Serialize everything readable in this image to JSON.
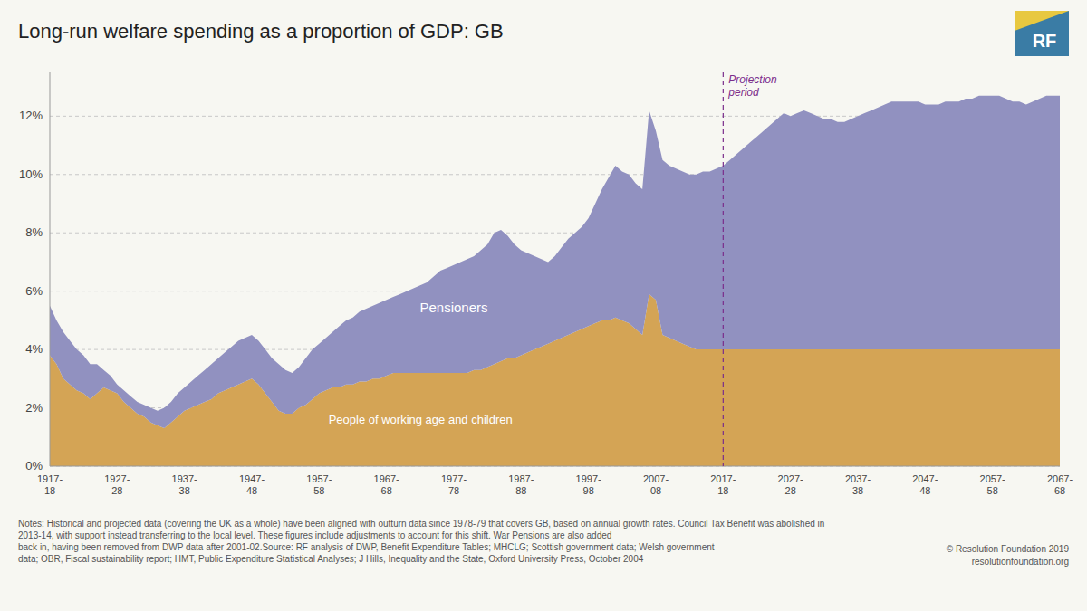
{
  "chart_data": {
    "type": "area",
    "stacked": true,
    "grid": true,
    "title": "Long-run welfare spending as a proportion of GDP: GB",
    "categories": [
      "1917-\n18",
      null,
      null,
      null,
      null,
      null,
      null,
      null,
      null,
      null,
      "1927-\n28",
      null,
      null,
      null,
      null,
      null,
      null,
      null,
      null,
      null,
      "1937-\n38",
      null,
      null,
      null,
      null,
      null,
      null,
      null,
      null,
      null,
      "1947-\n48",
      null,
      null,
      null,
      null,
      null,
      null,
      null,
      null,
      null,
      "1957-\n58",
      null,
      null,
      null,
      null,
      null,
      null,
      null,
      null,
      null,
      "1967-\n68",
      null,
      null,
      null,
      null,
      null,
      null,
      null,
      null,
      null,
      "1977-\n78",
      null,
      null,
      null,
      null,
      null,
      null,
      null,
      null,
      null,
      "1987-\n88",
      null,
      null,
      null,
      null,
      null,
      null,
      null,
      null,
      null,
      "1997-\n98",
      null,
      null,
      null,
      null,
      null,
      null,
      null,
      null,
      null,
      "2007-\n08",
      null,
      null,
      null,
      null,
      null,
      null,
      null,
      null,
      null,
      "2017-\n18",
      null,
      null,
      null,
      null,
      null,
      null,
      null,
      null,
      null,
      "2027-\n28",
      null,
      null,
      null,
      null,
      null,
      null,
      null,
      null,
      null,
      "2037-\n38",
      null,
      null,
      null,
      null,
      null,
      null,
      null,
      null,
      null,
      "2047-\n48",
      null,
      null,
      null,
      null,
      null,
      null,
      null,
      null,
      null,
      "2057-\n58",
      null,
      null,
      null,
      null,
      null,
      null,
      null,
      null,
      null,
      "2067-\n68"
    ],
    "series": [
      {
        "name": "People of working age and children",
        "color": "#d4a455",
        "values": [
          3.8,
          3.5,
          3.0,
          2.8,
          2.6,
          2.5,
          2.3,
          2.5,
          2.7,
          2.6,
          2.5,
          2.2,
          2.0,
          1.8,
          1.7,
          1.5,
          1.4,
          1.3,
          1.5,
          1.7,
          1.9,
          2.0,
          2.1,
          2.2,
          2.3,
          2.5,
          2.6,
          2.7,
          2.8,
          2.9,
          3.0,
          2.8,
          2.5,
          2.2,
          1.9,
          1.8,
          1.8,
          2.0,
          2.1,
          2.3,
          2.5,
          2.6,
          2.7,
          2.7,
          2.8,
          2.8,
          2.9,
          2.9,
          3.0,
          3.0,
          3.1,
          3.2,
          3.2,
          3.2,
          3.2,
          3.2,
          3.2,
          3.2,
          3.2,
          3.2,
          3.2,
          3.2,
          3.2,
          3.3,
          3.3,
          3.4,
          3.5,
          3.6,
          3.7,
          3.7,
          3.8,
          3.9,
          4.0,
          4.1,
          4.2,
          4.3,
          4.4,
          4.5,
          4.6,
          4.7,
          4.8,
          4.9,
          5.0,
          5.0,
          5.1,
          5.0,
          4.9,
          4.7,
          4.5,
          5.9,
          5.7,
          4.5,
          4.4,
          4.3,
          4.2,
          4.1,
          4.0,
          4.0,
          4.0,
          4.0,
          4.0,
          4.0,
          4.0,
          4.0,
          4.0,
          4.0,
          4.0,
          4.0,
          4.0,
          4.0,
          4.0,
          4.0,
          4.0,
          4.0,
          4.0,
          4.0,
          4.0,
          4.0,
          4.0,
          4.0,
          4.0,
          4.0,
          4.0,
          4.0,
          4.0,
          4.0,
          4.0,
          4.0,
          4.0,
          4.0,
          4.0,
          4.0,
          4.0,
          4.0,
          4.0,
          4.0,
          4.0,
          4.0,
          4.0,
          4.0,
          4.0,
          4.0,
          4.0,
          4.0,
          4.0,
          4.0,
          4.0,
          4.0,
          4.0,
          4.0,
          4.0
        ]
      },
      {
        "name": "Pensioners",
        "color": "#9191c0",
        "values": [
          1.7,
          1.5,
          1.6,
          1.5,
          1.4,
          1.3,
          1.2,
          1.0,
          0.6,
          0.5,
          0.3,
          0.4,
          0.4,
          0.4,
          0.4,
          0.5,
          0.5,
          0.7,
          0.7,
          0.8,
          0.8,
          0.9,
          1.0,
          1.1,
          1.2,
          1.2,
          1.3,
          1.4,
          1.5,
          1.5,
          1.5,
          1.5,
          1.5,
          1.5,
          1.6,
          1.5,
          1.4,
          1.4,
          1.6,
          1.7,
          1.7,
          1.8,
          1.9,
          2.1,
          2.2,
          2.3,
          2.4,
          2.5,
          2.5,
          2.6,
          2.6,
          2.6,
          2.7,
          2.8,
          2.9,
          3.0,
          3.1,
          3.3,
          3.5,
          3.6,
          3.7,
          3.8,
          3.9,
          3.9,
          4.1,
          4.2,
          4.5,
          4.5,
          4.2,
          3.9,
          3.6,
          3.4,
          3.2,
          3.0,
          2.8,
          2.9,
          3.1,
          3.3,
          3.4,
          3.5,
          3.7,
          4.1,
          4.5,
          4.9,
          5.2,
          5.1,
          5.1,
          5.0,
          5.0,
          6.3,
          5.8,
          6.0,
          5.9,
          5.9,
          5.9,
          5.9,
          6.0,
          6.1,
          6.1,
          6.2,
          6.3,
          6.5,
          6.7,
          6.9,
          7.1,
          7.3,
          7.5,
          7.7,
          7.9,
          8.1,
          8.0,
          8.1,
          8.2,
          8.1,
          8.0,
          7.9,
          7.9,
          7.8,
          7.8,
          7.9,
          8.0,
          8.1,
          8.2,
          8.3,
          8.4,
          8.5,
          8.5,
          8.5,
          8.5,
          8.5,
          8.4,
          8.4,
          8.4,
          8.5,
          8.5,
          8.5,
          8.6,
          8.6,
          8.7,
          8.7,
          8.7,
          8.7,
          8.6,
          8.5,
          8.5,
          8.4,
          8.5,
          8.6,
          8.7,
          8.7,
          8.7
        ]
      }
    ],
    "ylim": [
      0,
      13.5
    ],
    "yticks": [
      {
        "value": 0,
        "label": "0%"
      },
      {
        "value": 2,
        "label": "2%"
      },
      {
        "value": 4,
        "label": "4%"
      },
      {
        "value": 6,
        "label": "6%"
      },
      {
        "value": 8,
        "label": "8%"
      },
      {
        "value": 10,
        "label": "10%"
      },
      {
        "value": 12,
        "label": "12%"
      }
    ],
    "annotations": [
      {
        "text": "Projection\nperiod",
        "x": 100,
        "color": "#7b2d8b"
      }
    ],
    "notes": "Notes: Historical and projected data (covering the UK as a whole) have been aligned with outturn data since 1978-79 that covers GB, based on annual growth rates. Council Tax Benefit was abolished in 2013-14, with support instead transferring to the local level. These figures include adjustments to account for this shift. War Pensions are also added\nback in, having been removed from DWP data after 2001-02.Source: RF analysis of DWP, Benefit Expenditure Tables; MHCLG; Scottish government data; Welsh government\ndata; OBR, Fiscal sustainability report; HMT, Public Expenditure Statistical Analyses; J Hills, Inequality and the State, Oxford University Press, October 2004",
    "copyright": "© Resolution Foundation 2019\nresolutionfoundation.org",
    "logo": "RF"
  }
}
